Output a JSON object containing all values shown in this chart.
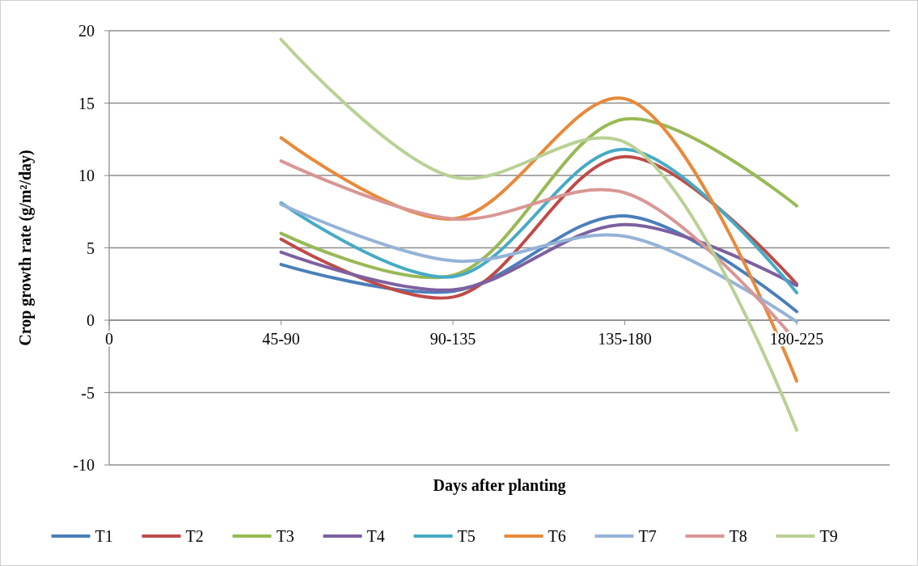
{
  "chart_data": {
    "type": "line",
    "xlabel": "Days after planting",
    "ylabel": "Crop growth rate (g/m²/day)",
    "categories": [
      "0",
      "45-90",
      "90-135",
      "135-180",
      "180-225"
    ],
    "ylim": [
      -10,
      20
    ],
    "yticks": [
      -10,
      -5,
      0,
      5,
      10,
      15,
      20
    ],
    "grid": "y",
    "legend": "bottom",
    "marker": "none",
    "line_style": "solid",
    "series": [
      {
        "name": "T1",
        "color": "#4a7ebb",
        "values": [
          null,
          3.85,
          2.0,
          7.2,
          0.6
        ]
      },
      {
        "name": "T2",
        "color": "#be4b48",
        "values": [
          null,
          5.6,
          1.6,
          11.3,
          2.5
        ]
      },
      {
        "name": "T3",
        "color": "#98b954",
        "values": [
          null,
          6.0,
          3.1,
          13.9,
          7.9
        ]
      },
      {
        "name": "T4",
        "color": "#7d60a0",
        "values": [
          null,
          4.7,
          2.1,
          6.6,
          2.4
        ]
      },
      {
        "name": "T5",
        "color": "#46aac5",
        "values": [
          null,
          8.1,
          3.0,
          11.8,
          1.9
        ]
      },
      {
        "name": "T6",
        "color": "#e8893a",
        "values": [
          null,
          12.6,
          7.0,
          15.3,
          -4.2
        ]
      },
      {
        "name": "T7",
        "color": "#95b3d7",
        "values": [
          null,
          8.0,
          4.1,
          5.8,
          -0.1
        ]
      },
      {
        "name": "T8",
        "color": "#d99694",
        "values": [
          null,
          11.0,
          7.0,
          8.8,
          -1.5
        ]
      },
      {
        "name": "T9",
        "color": "#b9d195",
        "values": [
          null,
          19.4,
          9.9,
          12.3,
          -7.6
        ]
      }
    ]
  }
}
